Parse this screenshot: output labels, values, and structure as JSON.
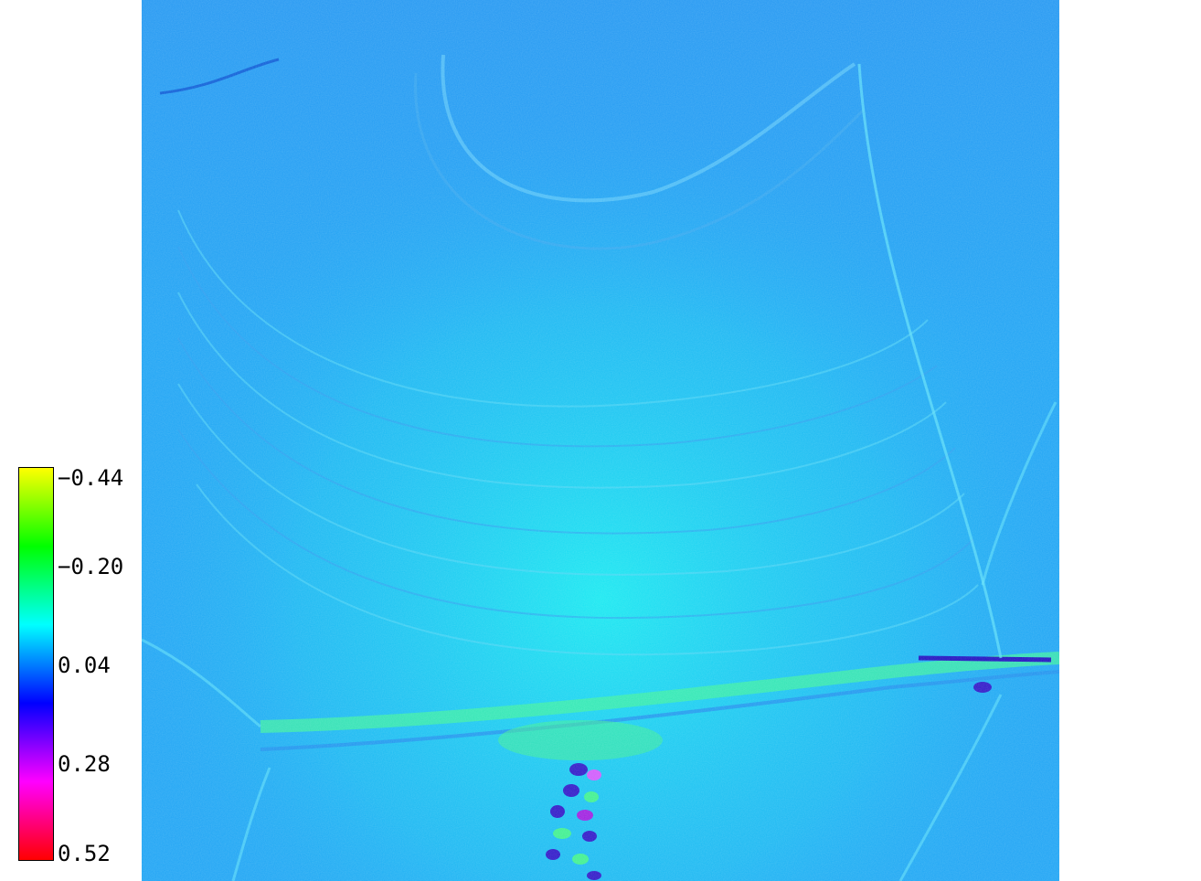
{
  "map": {
    "colormap": [
      "#ffff00",
      "#00ff00",
      "#00ffff",
      "#0000ff",
      "#ff00ff",
      "#ff0000"
    ],
    "base_color": "#1fa4f4"
  },
  "legend": {
    "ticks": [
      "−0.44",
      "−0.20",
      "0.04",
      "0.28",
      "0.52"
    ]
  }
}
